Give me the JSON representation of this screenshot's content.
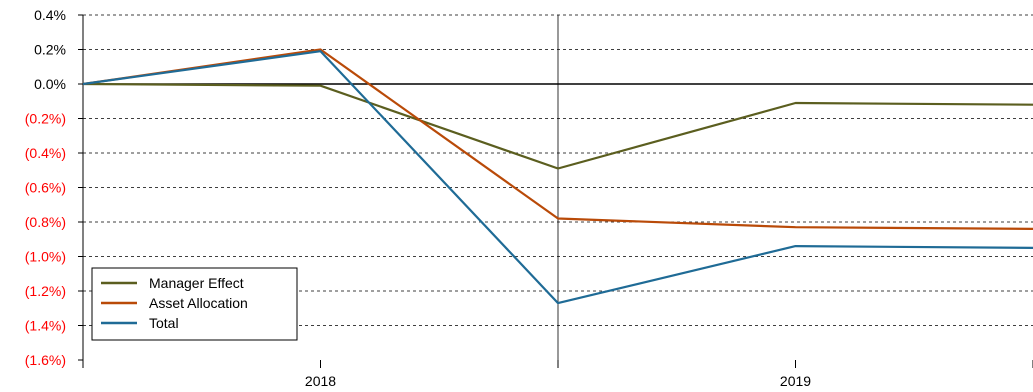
{
  "chart_data": {
    "type": "line",
    "x": [
      0,
      1,
      2,
      3,
      4
    ],
    "x_tick_labels": [
      {
        "x": 1,
        "label": "2018"
      },
      {
        "x": 3,
        "label": "2019"
      }
    ],
    "series": [
      {
        "name": "Manager Effect",
        "color": "#5b5e1f",
        "values": [
          0.0,
          -0.01,
          -0.49,
          -0.11,
          -0.12
        ]
      },
      {
        "name": "Asset Allocation",
        "color": "#b94a08",
        "values": [
          0.0,
          0.2,
          -0.78,
          -0.83,
          -0.84
        ]
      },
      {
        "name": "Total",
        "color": "#1f6b96",
        "values": [
          0.0,
          0.19,
          -1.27,
          -0.94,
          -0.95
        ]
      }
    ],
    "ylim": [
      -1.6,
      0.4
    ],
    "y_ticks": [
      {
        "value": 0.4,
        "label": "0.4%",
        "color": "#000000"
      },
      {
        "value": 0.2,
        "label": "0.2%",
        "color": "#000000"
      },
      {
        "value": 0.0,
        "label": "0.0%",
        "color": "#000000"
      },
      {
        "value": -0.2,
        "label": "(0.2%)",
        "color": "#ff0000"
      },
      {
        "value": -0.4,
        "label": "(0.4%)",
        "color": "#ff0000"
      },
      {
        "value": -0.6,
        "label": "(0.6%)",
        "color": "#ff0000"
      },
      {
        "value": -0.8,
        "label": "(0.8%)",
        "color": "#ff0000"
      },
      {
        "value": -1.0,
        "label": "(1.0%)",
        "color": "#ff0000"
      },
      {
        "value": -1.2,
        "label": "(1.2%)",
        "color": "#ff0000"
      },
      {
        "value": -1.4,
        "label": "(1.4%)",
        "color": "#ff0000"
      },
      {
        "value": -1.6,
        "label": "(1.6%)",
        "color": "#ff0000"
      }
    ],
    "vertical_reference_x": 2,
    "grid": "horizontal-dashed",
    "legend_position": "bottom-left"
  }
}
